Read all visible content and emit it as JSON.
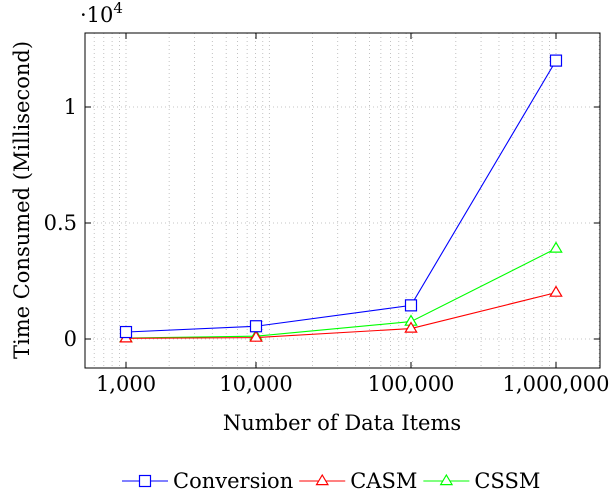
{
  "chart_data": {
    "type": "line",
    "x_scale": "log",
    "categories": [
      "1,000",
      "10,000",
      "100,000",
      "1,000,000"
    ],
    "x": [
      1000,
      10000,
      100000,
      1000000
    ],
    "xlabel": "Number of Data Items",
    "ylabel": "Time Consumed (Millisecond)",
    "y_multiplier_label": "·10",
    "y_multiplier_exponent": "4",
    "y_ticks": [
      0,
      0.5,
      1
    ],
    "y_tick_labels": [
      "0",
      "0.5",
      "1"
    ],
    "ylim": [
      -0.12,
      1.3
    ],
    "grid": true,
    "legend_position": "bottom-center",
    "series": [
      {
        "name": "Conversion",
        "color": "#0000ff",
        "marker": "square",
        "values": [
          0.03,
          0.055,
          0.145,
          1.2
        ]
      },
      {
        "name": "CASM",
        "color": "#ff0000",
        "marker": "triangle",
        "values": [
          0.003,
          0.006,
          0.045,
          0.2
        ]
      },
      {
        "name": "CSSM",
        "color": "#00ff00",
        "marker": "triangle",
        "values": [
          0.004,
          0.012,
          0.075,
          0.39
        ]
      }
    ]
  }
}
